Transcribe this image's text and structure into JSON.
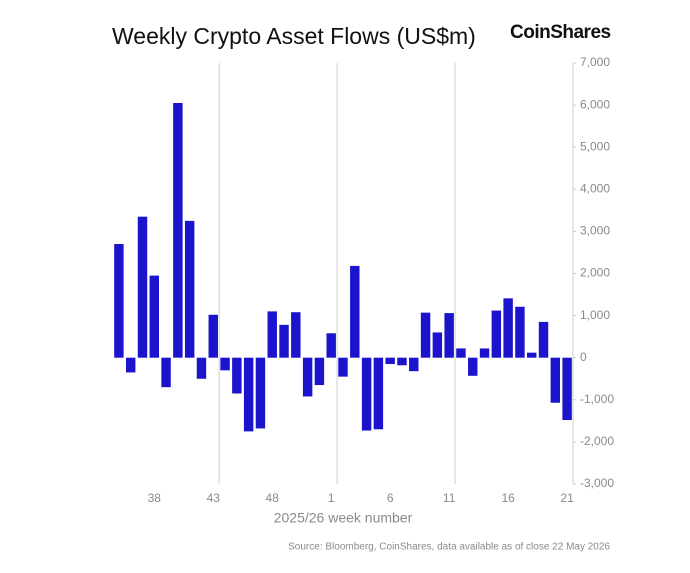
{
  "chart_data": {
    "type": "bar",
    "title": "Weekly Crypto Asset Flows (US$m)",
    "brand": "CoinShares",
    "xlabel": "2025/26 week number",
    "source": "Source: Bloomberg, CoinShares, data available as of close 22 May 2026",
    "categories": [
      null,
      null,
      null,
      "38",
      null,
      null,
      null,
      null,
      "43",
      null,
      null,
      null,
      null,
      "48",
      null,
      null,
      null,
      null,
      "1",
      null,
      null,
      null,
      null,
      "6",
      null,
      null,
      null,
      null,
      "11",
      null,
      null,
      null,
      null,
      "16",
      null,
      null,
      null,
      null,
      "21"
    ],
    "values": [
      2700,
      -350,
      3350,
      1950,
      -700,
      6050,
      3250,
      -500,
      1020,
      -300,
      -850,
      -1750,
      -1680,
      1100,
      780,
      1080,
      -920,
      -650,
      580,
      -450,
      2180,
      -1730,
      -1700,
      -150,
      -180,
      -320,
      1070,
      600,
      1060,
      220,
      -430,
      220,
      1120,
      1410,
      1210,
      120,
      850,
      -1070,
      -1480
    ],
    "color": "#1c14cc",
    "ylim": [
      -3000,
      7000
    ],
    "yticks": [
      {
        "value": 7000,
        "label": "7,000"
      },
      {
        "value": 6000,
        "label": "6,000"
      },
      {
        "value": 5000,
        "label": "5,000"
      },
      {
        "value": 4000,
        "label": "4,000"
      },
      {
        "value": 3000,
        "label": "3,000"
      },
      {
        "value": 2000,
        "label": "2,000"
      },
      {
        "value": 1000,
        "label": "1,000"
      },
      0,
      {
        "value": -1000,
        "label": "-1,000"
      },
      {
        "value": -2000,
        "label": "-2,000"
      },
      {
        "value": -3000,
        "label": "-3,000"
      }
    ]
  }
}
